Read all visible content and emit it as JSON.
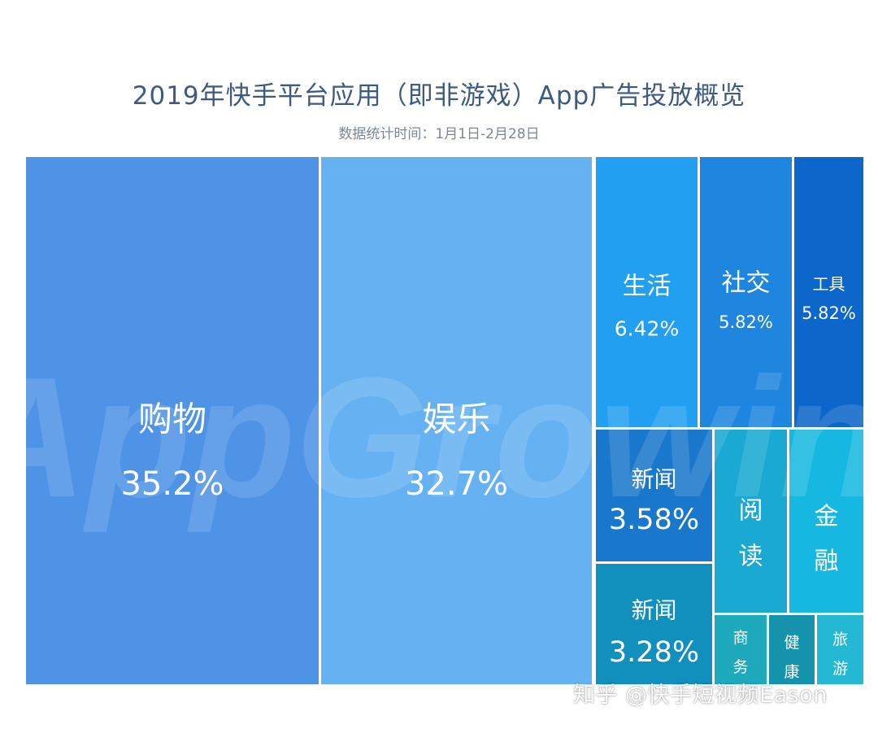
{
  "chart_data": {
    "type": "treemap",
    "title": "2019年快手平台应用（即非游戏）App广告投放概览",
    "subtitle": "数据统计时间：1月1日-2月28日",
    "cells": [
      {
        "label": "购物",
        "value": "35.2%",
        "color": "#4f93e6"
      },
      {
        "label": "娱乐",
        "value": "32.7%",
        "color": "#66b1f2"
      },
      {
        "label": "生活",
        "value": "6.42%",
        "color": "#229ff0"
      },
      {
        "label": "社交",
        "value": "5.82%",
        "color": "#1e86df"
      },
      {
        "label": "工具",
        "value": "5.82%",
        "color": "#0d66c9"
      },
      {
        "label": "新闻",
        "value": "3.58%",
        "color": "#1a78cc"
      },
      {
        "label": "新闻",
        "value": "3.28%",
        "color": "#1190be"
      },
      {
        "label": "阅读",
        "value": "",
        "color": "#19a9d3"
      },
      {
        "label": "金融",
        "value": "",
        "color": "#16b8e1"
      },
      {
        "label": "商务",
        "value": "",
        "color": "#1fa9bd"
      },
      {
        "label": "健康",
        "value": "",
        "color": "#1693ac"
      },
      {
        "label": "旅游",
        "value": "",
        "color": "#24b8d4"
      }
    ]
  },
  "watermark": {
    "brand_text": "AppGrowing",
    "credit": "知乎 @快手短视频Eason"
  }
}
